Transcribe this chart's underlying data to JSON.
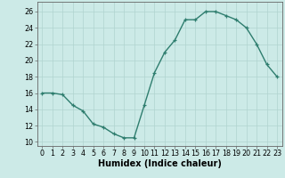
{
  "x": [
    0,
    1,
    2,
    3,
    4,
    5,
    6,
    7,
    8,
    9,
    10,
    11,
    12,
    13,
    14,
    15,
    16,
    17,
    18,
    19,
    20,
    21,
    22,
    23
  ],
  "y": [
    16,
    16,
    15.8,
    14.5,
    13.8,
    12.2,
    11.8,
    11.0,
    10.5,
    10.5,
    14.5,
    18.5,
    21.0,
    22.5,
    25.0,
    25.0,
    26.0,
    26.0,
    25.5,
    25.0,
    24.0,
    22.0,
    19.5,
    18.0
  ],
  "line_color": "#2e7d6e",
  "marker": "+",
  "marker_size": 3,
  "line_width": 1.0,
  "bg_color": "#cceae7",
  "grid_color": "#b0d4d0",
  "xlabel": "Humidex (Indice chaleur)",
  "xlabel_fontsize": 7,
  "ylabel_ticks": [
    10,
    12,
    14,
    16,
    18,
    20,
    22,
    24,
    26
  ],
  "xlim": [
    -0.5,
    23.5
  ],
  "ylim": [
    9.5,
    27.2
  ],
  "xticks": [
    0,
    1,
    2,
    3,
    4,
    5,
    6,
    7,
    8,
    9,
    10,
    11,
    12,
    13,
    14,
    15,
    16,
    17,
    18,
    19,
    20,
    21,
    22,
    23
  ],
  "tick_fontsize": 5.8
}
